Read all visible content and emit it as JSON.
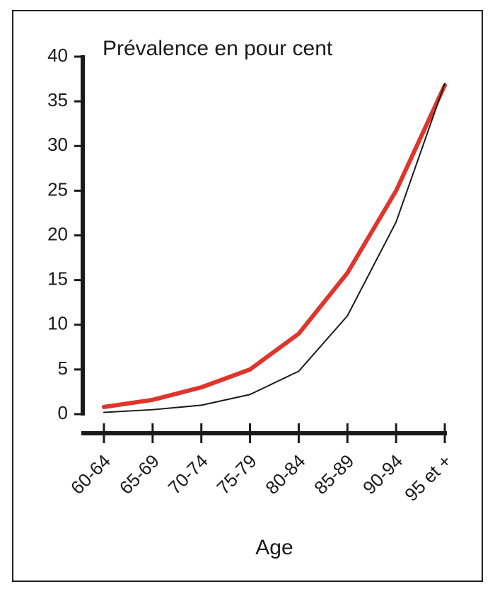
{
  "chart_data": {
    "type": "line",
    "title": "Prévalence en pour cent",
    "x_label": "Age",
    "categories": [
      "60-64",
      "65-69",
      "70-74",
      "75-79",
      "80-84",
      "85-89",
      "90-94",
      "95 et +"
    ],
    "series": [
      {
        "color": "#e0352b",
        "values": [
          0.8,
          1.6,
          3,
          5,
          9,
          15.8,
          25,
          36.8
        ]
      },
      {
        "color": "#1a1a1a",
        "values": [
          0.2,
          0.5,
          1,
          2.2,
          4.8,
          11,
          21.5,
          37
        ]
      }
    ],
    "ylim": [
      0,
      40
    ],
    "yticks": [
      0,
      5,
      10,
      15,
      20,
      25,
      30,
      35,
      40
    ]
  }
}
